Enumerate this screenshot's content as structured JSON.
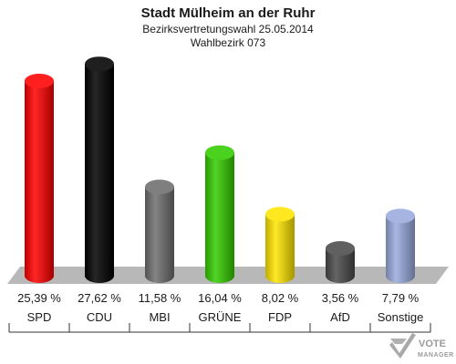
{
  "chart_data": {
    "type": "bar",
    "title": "Stadt Mülheim an der Ruhr",
    "subtitle": "Bezirksvertretungswahl 25.05.2014",
    "subtitle2": "Wahlbezirk 073",
    "categories": [
      "SPD",
      "CDU",
      "MBI",
      "GRÜNE",
      "FDP",
      "AfD",
      "Sonstige"
    ],
    "values": [
      25.39,
      27.62,
      11.58,
      16.04,
      8.02,
      3.56,
      7.79
    ],
    "value_labels": [
      "25,39 %",
      "27,62 %",
      "11,58 %",
      "16,04 %",
      "8,02 %",
      "3,56 %",
      "7,79 %"
    ],
    "colors": [
      "#ff0000",
      "#000000",
      "#6e6e6e",
      "#33cc00",
      "#ffe500",
      "#4a4a4a",
      "#99aadd"
    ],
    "ylim": [
      0,
      28
    ],
    "xlabel": "",
    "ylabel": "",
    "grid": false,
    "legend": "none"
  },
  "logo": {
    "line1": "VOTE",
    "line2": "MANAGER",
    "icon": "check-mark-icon"
  }
}
